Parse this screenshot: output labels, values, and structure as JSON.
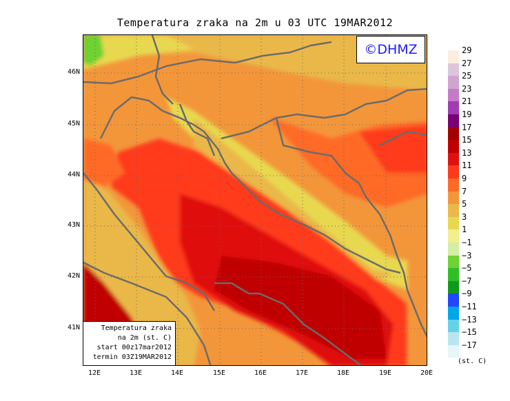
{
  "title": "Temperatura zraka na 2m u 03 UTC 19MAR2012",
  "copyright": "©DHMZ",
  "info_box": {
    "line1": "Temperatura zraka",
    "line2": "na 2m (st. C)",
    "line3": "start 00z17mar2012",
    "line4": "termin 03Z19MAR2012"
  },
  "lat_labels": [
    "46N",
    "45N",
    "44N",
    "43N",
    "42N",
    "41N"
  ],
  "lon_labels": [
    "12E",
    "13E",
    "14E",
    "15E",
    "16E",
    "17E",
    "18E",
    "19E",
    "20E"
  ],
  "legend": {
    "labels": [
      "29",
      "27",
      "25",
      "23",
      "21",
      "19",
      "17",
      "15",
      "13",
      "11",
      "9",
      "7",
      "5",
      "3",
      "1",
      "−1",
      "−3",
      "−5",
      "−7",
      "−9",
      "−11",
      "−13",
      "−15",
      "−17"
    ],
    "colors": [
      "#fbeee0",
      "#dcc6dc",
      "#cfa5cf",
      "#c47bc9",
      "#a13cb4",
      "#7a0073",
      "#a40000",
      "#c00000",
      "#e01010",
      "#ff3a1a",
      "#ff6a28",
      "#f3963a",
      "#eab848",
      "#e8d84f",
      "#f1f08d",
      "#d4eea4",
      "#6dd232",
      "#2ebf25",
      "#0f9a1a",
      "#2046ff",
      "#00a6ea",
      "#66d2e8",
      "#b9e6ee",
      "#e5f7f9"
    ],
    "unit": "(st. C)"
  }
}
